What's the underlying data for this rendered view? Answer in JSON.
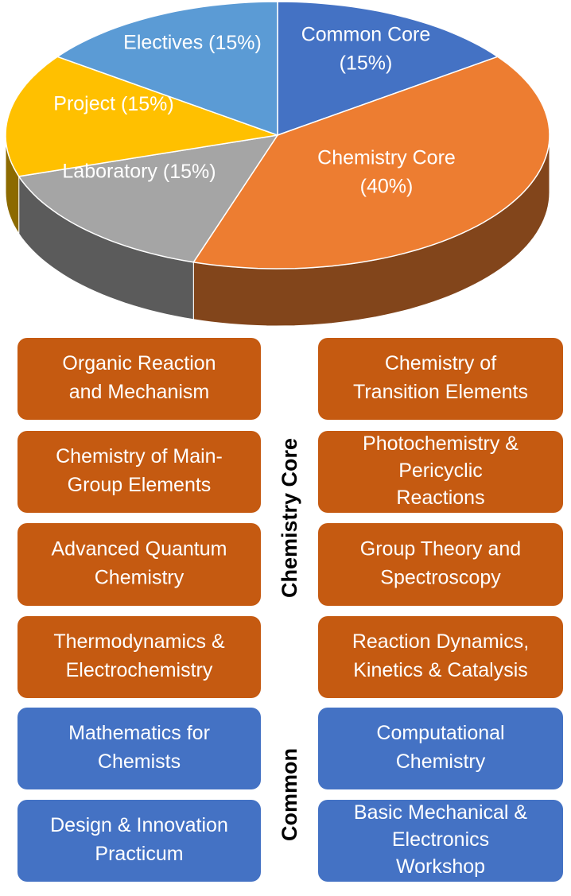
{
  "chart_data": {
    "type": "pie",
    "categories": [
      "Common Core",
      "Chemistry Core",
      "Laboratory",
      "Project",
      "Electives"
    ],
    "values": [
      15,
      40,
      15,
      15,
      15
    ],
    "value_labels": [
      "(15%)",
      "(40%)",
      "(15%)",
      "(15%)",
      "(15%)"
    ],
    "colors": [
      "#4472c4",
      "#ed7d31",
      "#a5a5a5",
      "#ffc000",
      "#5b9bd5"
    ]
  },
  "groups": [
    {
      "label": "Chemistry Core",
      "color": "#c55a11",
      "boxes": [
        {
          "lines": [
            "Organic Reaction",
            "and Mechanism"
          ]
        },
        {
          "lines": [
            "Chemistry of",
            "Transition Elements"
          ]
        },
        {
          "lines": [
            "Chemistry of Main-",
            "Group Elements"
          ]
        },
        {
          "lines": [
            "Photochemistry &",
            "Pericyclic",
            "Reactions"
          ]
        },
        {
          "lines": [
            "Advanced Quantum",
            "Chemistry"
          ]
        },
        {
          "lines": [
            "Group Theory and",
            "Spectroscopy"
          ]
        },
        {
          "lines": [
            "Thermodynamics &",
            "Electrochemistry"
          ]
        },
        {
          "lines": [
            "Reaction Dynamics,",
            "Kinetics & Catalysis"
          ]
        }
      ]
    },
    {
      "label": "Common",
      "color": "#4472c4",
      "boxes": [
        {
          "lines": [
            "Mathematics for",
            "Chemists"
          ]
        },
        {
          "lines": [
            "Computational",
            "Chemistry"
          ]
        },
        {
          "lines": [
            "Design & Innovation",
            "Practicum"
          ]
        },
        {
          "lines": [
            "Basic Mechanical &",
            "Electronics",
            "Workshop"
          ]
        }
      ]
    }
  ]
}
